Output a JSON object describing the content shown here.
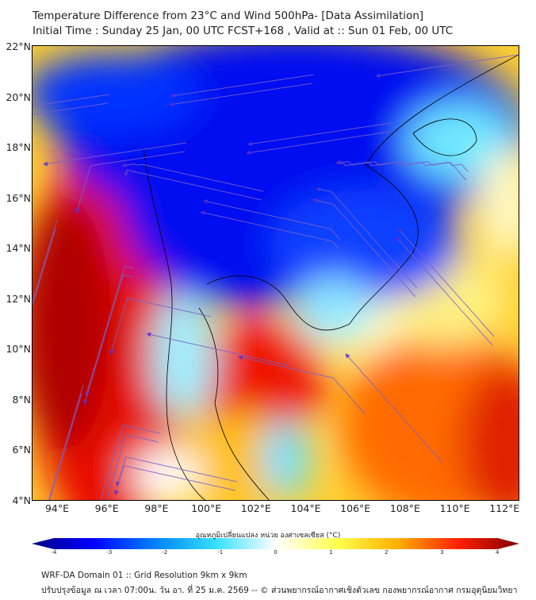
{
  "header": {
    "title": "Temperature Difference from 23°C and Wind 500hPa- [Data Assimilation]",
    "subtitle": "Initial Time : Sunday 25 Jan, 00 UTC FCST+168 , Valid at ::  Sun 01 Feb, 00 UTC"
  },
  "map": {
    "lat_labels": [
      "22°N",
      "20°N",
      "18°N",
      "16°N",
      "14°N",
      "12°N",
      "10°N",
      "8°N",
      "6°N",
      "4°N"
    ],
    "lon_labels": [
      "94°E",
      "96°E",
      "98°E",
      "100°E",
      "102°E",
      "104°E",
      "106°E",
      "108°E",
      "110°E",
      "112°E"
    ],
    "streamline_color": "#6a4fc8"
  },
  "colorbar": {
    "label": "อุณหภูมิเปลี่ยนแปลง หน่วย องศาเซลเซียส (°C)",
    "ticks": [
      "-4",
      "-3",
      "-2",
      "-1",
      "0",
      "1",
      "2",
      "3",
      "4"
    ],
    "colors": [
      "#00007f",
      "#0000ff",
      "#0080ff",
      "#33e0ff",
      "#ffffff",
      "#ffff50",
      "#ffb000",
      "#ff2000",
      "#800000"
    ]
  },
  "footer": {
    "line1": "WRF-DA Domain 01 :: Grid Resolution 9km x 9km",
    "line2": "ปรับปรุงข้อมูล ณ เวลา 07:00น. วัน อา. ที่ 25 ม.ค. 2569 -- © ส่วนพยากรณ์อากาศเชิงตัวเลข กองพยากรณ์อากาศ กรมอุตุนิยมวิทยา"
  }
}
